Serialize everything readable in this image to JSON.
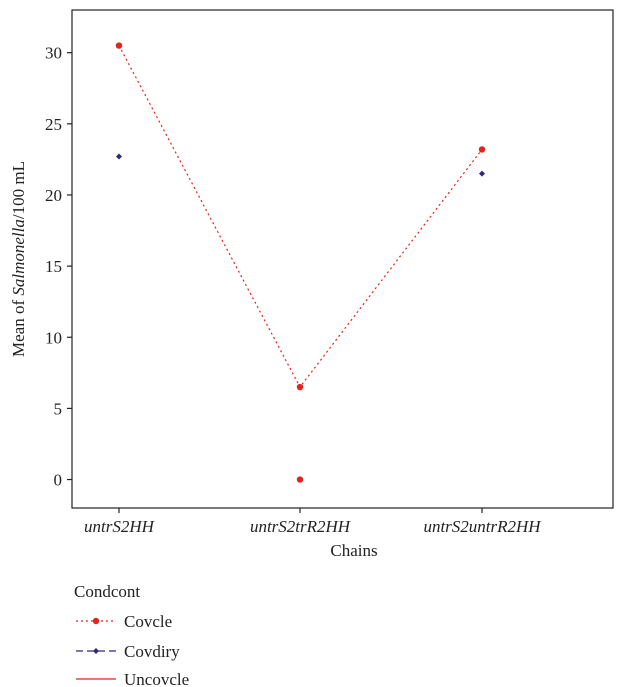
{
  "chart_data": {
    "type": "scatter",
    "xlabel": "Chains",
    "ylabel_prefix": "Mean of ",
    "ylabel_italic": "Salmonella",
    "ylabel_suffix": "/100 mL",
    "categories": [
      "untrS2HH",
      "untrS2trR2HH",
      "untrS2untrR2HH"
    ],
    "ylim": [
      -2,
      33
    ],
    "yticks": [
      0,
      5,
      10,
      15,
      20,
      25,
      30
    ],
    "grid": false,
    "legend_position": "bottom",
    "legend_title": "Condcont",
    "series": [
      {
        "name": "Covcle",
        "values": [
          30.5,
          6.5,
          23.2
        ],
        "extra_points": [
          {
            "category_index": 1,
            "value": 0
          }
        ],
        "color": "#e3241b",
        "marker": "circle",
        "line": "dotted"
      },
      {
        "name": "Covdiry",
        "values": [
          22.7,
          null,
          21.5
        ],
        "color": "#2b2a7a",
        "marker": "diamond",
        "line": "dashed"
      },
      {
        "name": "Uncovcle",
        "values": [],
        "color": "#e3241b",
        "marker": "none",
        "line": "solid"
      }
    ]
  }
}
